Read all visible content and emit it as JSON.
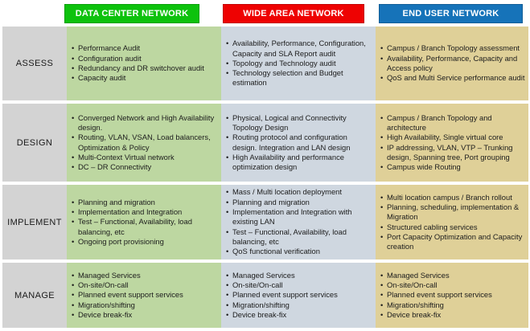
{
  "matrix": {
    "columns": [
      {
        "id": "data-center-network",
        "label": "DATA CENTER NETWORK",
        "header_color": "#0dc20d",
        "cell_color": "#bdd7a1"
      },
      {
        "id": "wide-area-network",
        "label": "WIDE AREA NETWORK",
        "header_color": "#ee0202",
        "cell_color": "#cfd7e0"
      },
      {
        "id": "end-user-network",
        "label": "END USER NETWORK",
        "header_color": "#1673b9",
        "cell_color": "#dfd098"
      }
    ],
    "row_label_background": "#d3d3d3",
    "rows": [
      {
        "label": "ASSESS",
        "cells": [
          [
            "Performance Audit",
            "Configuration audit",
            "Redundancy and DR switchover audit",
            "Capacity audit"
          ],
          [
            "Availability, Performance, Configuration, Capacity and SLA Report audit",
            "Topology and Technology audit",
            "Technology selection and Budget estimation"
          ],
          [
            "Campus / Branch Topology assessment",
            "Availability, Performance, Capacity and Access policy",
            "QoS and Multi Service performance audit"
          ]
        ]
      },
      {
        "label": "DESIGN",
        "cells": [
          [
            "Converged Network and High Availability design.",
            "Routing, VLAN, VSAN, Load balancers, Optimization & Policy",
            "Multi-Context Virtual network",
            "DC – DR Connectivity"
          ],
          [
            "Physical, Logical and Connectivity Topology Design",
            "Routing protocol and configuration design. Integration and LAN design",
            "High Availability and performance optimization design"
          ],
          [
            "Campus / Branch Topology and architecture",
            "High Availability, Single virtual core",
            "IP addressing, VLAN, VTP – Trunking design, Spanning tree, Port grouping",
            "Campus wide Routing"
          ]
        ]
      },
      {
        "label": "IMPLEMENT",
        "cells": [
          [
            "Planning and migration",
            "Implementation and Integration",
            "Test – Functional, Availability, load balancing, etc",
            "Ongoing port provisioning"
          ],
          [
            "Mass / Multi location deployment",
            "Planning and migration",
            "Implementation and Integration with existing LAN",
            "Test – Functional, Availability, load balancing, etc",
            "QoS functional verification"
          ],
          [
            "Multi location campus / Branch rollout",
            "Planning, scheduling, implementation & Migration",
            "Structured cabling services",
            "Port Capacity Optimization and Capacity creation"
          ]
        ]
      },
      {
        "label": "MANAGE",
        "cells": [
          [
            "Managed Services",
            "On-site/On-call",
            "Planned event support services",
            "Migration/shifting",
            "Device break-fix"
          ],
          [
            "Managed Services",
            "On-site/On-call",
            "Planned event support services",
            "Migration/shifting",
            "Device break-fix"
          ],
          [
            "Managed Services",
            "On-site/On-call",
            "Planned event support services",
            "Migration/shifting",
            "Device break-fix"
          ]
        ]
      }
    ]
  }
}
